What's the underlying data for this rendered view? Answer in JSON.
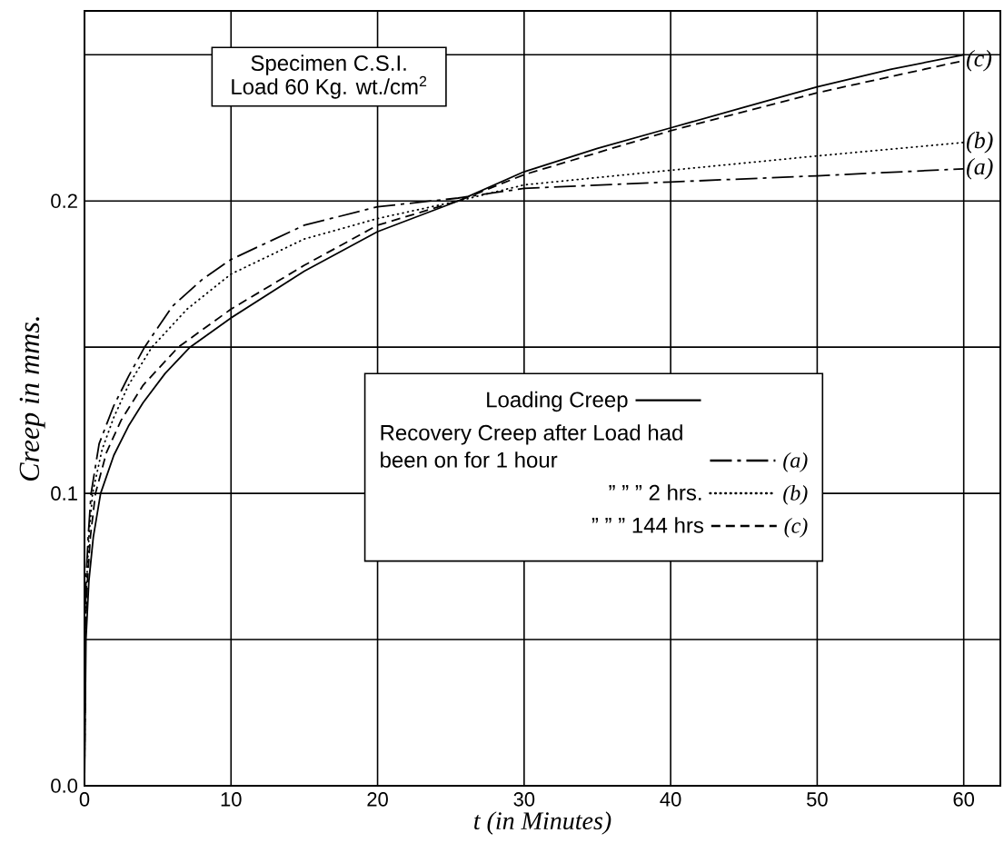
{
  "chart_data": {
    "type": "line",
    "title": "Specimen C.S.I.",
    "subtitle": "Load 60 Kg. wt./cm$^{2}$",
    "xlabel": "t  (in Minutes)",
    "ylabel": "Creep in mms.",
    "xlim": [
      0,
      62.5
    ],
    "ylim": [
      0,
      0.265
    ],
    "xticks": [
      0,
      10,
      20,
      30,
      40,
      50,
      60
    ],
    "yticks": [
      {
        "value": 0,
        "label": "0.0"
      },
      {
        "value": 0.05,
        "label": null
      },
      {
        "value": 0.1,
        "label": "0.1"
      },
      {
        "value": 0.15,
        "label": null
      },
      {
        "value": 0.2,
        "label": "0.2"
      },
      {
        "value": 0.25,
        "label": null
      }
    ],
    "grid": true,
    "legend": "right",
    "series": [
      {
        "name": "Loading Creep",
        "color": "#000000",
        "line_style": "solid",
        "x": [
          0,
          0.1,
          0.3,
          0.6,
          1.1,
          2,
          3,
          4,
          5.5,
          7.2,
          10,
          15,
          20,
          25.5,
          30,
          35,
          40,
          45,
          50,
          55,
          60
        ],
        "values": [
          0,
          0.05,
          0.07,
          0.085,
          0.1,
          0.113,
          0.123,
          0.131,
          0.141,
          0.15,
          0.16,
          0.176,
          0.1895,
          0.2,
          0.21,
          0.218,
          0.225,
          0.232,
          0.239,
          0.245,
          0.25
        ]
      },
      {
        "name": "Recovery Creep after Load had been on for 1 hour",
        "color": "#000000",
        "line_style": "dashdot",
        "x": [
          0,
          0.05,
          0.1,
          0.25,
          0.45,
          1,
          2,
          3,
          4.1,
          6,
          8,
          10,
          15,
          20,
          25.5,
          30,
          40,
          50,
          60
        ],
        "values": [
          0,
          0.05,
          0.07,
          0.085,
          0.1,
          0.117,
          0.13,
          0.14,
          0.15,
          0.164,
          0.173,
          0.18,
          0.1917,
          0.198,
          0.201,
          0.2043,
          0.2065,
          0.2086,
          0.211
        ]
      },
      {
        "name": "”   ”   ” 2 hrs.",
        "color": "#000000",
        "line_style": "dotted",
        "x": [
          0,
          0.05,
          0.15,
          0.3,
          0.55,
          1.2,
          2,
          3,
          4.6,
          7,
          10,
          15,
          20,
          25.5,
          30,
          40,
          50,
          60
        ],
        "values": [
          0,
          0.05,
          0.07,
          0.085,
          0.1,
          0.115,
          0.126,
          0.137,
          0.15,
          0.163,
          0.175,
          0.187,
          0.194,
          0.2,
          0.2055,
          0.2105,
          0.2154,
          0.22
        ]
      },
      {
        "name": "”   ”   ” 144 hrs",
        "color": "#000000",
        "line_style": "dashed",
        "x": [
          0,
          0.05,
          0.2,
          0.4,
          0.75,
          1.5,
          2.5,
          4,
          6.4,
          10,
          15,
          20,
          25.5,
          30,
          40,
          50,
          60
        ],
        "values": [
          0,
          0.05,
          0.07,
          0.085,
          0.1,
          0.114,
          0.125,
          0.137,
          0.15,
          0.163,
          0.178,
          0.1917,
          0.2,
          0.209,
          0.224,
          0.237,
          0.248
        ]
      }
    ],
    "annotations": [
      "(a)",
      "(b)",
      "(c)"
    ]
  }
}
